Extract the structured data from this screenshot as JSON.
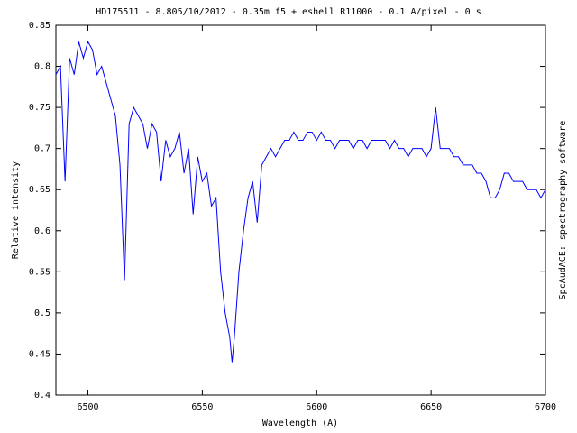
{
  "chart_data": {
    "type": "line",
    "title": "HD175511 - 8.805/10/2012 - 0.35m f5 + eshell R11000 - 0.1 A/pixel - 0 s",
    "x_label": "Wavelength (A)",
    "y_label": "Relative intensity",
    "side_note": "SpcAudACE: spectrography software",
    "xlim": [
      6486,
      6700
    ],
    "ylim": [
      0.4,
      0.85
    ],
    "xticks": [
      6500,
      6550,
      6600,
      6650,
      6700
    ],
    "yticks": [
      0.4,
      0.45,
      0.5,
      0.55,
      0.6,
      0.65,
      0.7,
      0.75,
      0.8,
      0.85
    ],
    "grid": false,
    "x": [
      6486,
      6488,
      6490,
      6492,
      6494,
      6496,
      6498,
      6500,
      6502,
      6504,
      6506,
      6508,
      6510,
      6512,
      6514,
      6516,
      6518,
      6520,
      6522,
      6524,
      6526,
      6528,
      6530,
      6532,
      6534,
      6536,
      6538,
      6540,
      6542,
      6544,
      6546,
      6548,
      6550,
      6552,
      6554,
      6556,
      6558,
      6560,
      6562,
      6563,
      6564,
      6566,
      6568,
      6570,
      6572,
      6574,
      6576,
      6578,
      6580,
      6582,
      6584,
      6586,
      6588,
      6590,
      6592,
      6594,
      6596,
      6598,
      6600,
      6602,
      6604,
      6606,
      6608,
      6610,
      6612,
      6614,
      6616,
      6618,
      6620,
      6622,
      6624,
      6626,
      6628,
      6630,
      6632,
      6634,
      6636,
      6638,
      6640,
      6642,
      6644,
      6646,
      6648,
      6650,
      6652,
      6654,
      6656,
      6658,
      6660,
      6662,
      6664,
      6666,
      6668,
      6670,
      6672,
      6674,
      6676,
      6678,
      6680,
      6682,
      6684,
      6686,
      6688,
      6690,
      6692,
      6694,
      6696,
      6698,
      6700
    ],
    "series": [
      {
        "color": "#0000ff",
        "values": [
          0.79,
          0.8,
          0.66,
          0.81,
          0.79,
          0.83,
          0.81,
          0.83,
          0.82,
          0.79,
          0.8,
          0.78,
          0.76,
          0.74,
          0.68,
          0.54,
          0.73,
          0.75,
          0.74,
          0.73,
          0.7,
          0.73,
          0.72,
          0.66,
          0.71,
          0.69,
          0.7,
          0.72,
          0.67,
          0.7,
          0.62,
          0.69,
          0.66,
          0.67,
          0.63,
          0.64,
          0.55,
          0.5,
          0.47,
          0.44,
          0.47,
          0.55,
          0.6,
          0.64,
          0.66,
          0.61,
          0.68,
          0.69,
          0.7,
          0.69,
          0.7,
          0.71,
          0.71,
          0.72,
          0.71,
          0.71,
          0.72,
          0.72,
          0.71,
          0.72,
          0.71,
          0.71,
          0.7,
          0.71,
          0.71,
          0.71,
          0.7,
          0.71,
          0.71,
          0.7,
          0.71,
          0.71,
          0.71,
          0.71,
          0.7,
          0.71,
          0.7,
          0.7,
          0.69,
          0.7,
          0.7,
          0.7,
          0.69,
          0.7,
          0.75,
          0.7,
          0.7,
          0.7,
          0.69,
          0.69,
          0.68,
          0.68,
          0.68,
          0.67,
          0.67,
          0.66,
          0.64,
          0.64,
          0.65,
          0.67,
          0.67,
          0.66,
          0.66,
          0.66,
          0.65,
          0.65,
          0.65,
          0.64,
          0.65
        ]
      }
    ]
  }
}
